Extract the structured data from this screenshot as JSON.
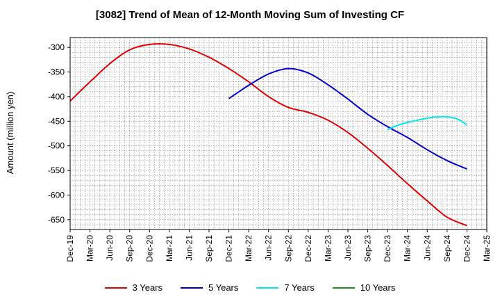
{
  "chart_data": {
    "type": "line",
    "title": "[3082]  Trend of Mean of 12-Month Moving Sum of Investing CF",
    "xlabel": "",
    "ylabel": "Amount (million yen)",
    "ylim": [
      -670,
      -280
    ],
    "yticks": [
      -300,
      -350,
      -400,
      -450,
      -500,
      -550,
      -600,
      -650
    ],
    "categories": [
      "Dec-19",
      "Mar-20",
      "Jun-20",
      "Sep-20",
      "Dec-20",
      "Mar-21",
      "Jun-21",
      "Sep-21",
      "Dec-21",
      "Mar-22",
      "Jun-22",
      "Sep-22",
      "Dec-22",
      "Mar-23",
      "Jun-23",
      "Sep-23",
      "Dec-23",
      "Mar-24",
      "Jun-24",
      "Sep-24",
      "Dec-24",
      "Mar-25"
    ],
    "grid": true,
    "legend_position": "bottom",
    "series": [
      {
        "name": "3 Years",
        "color": "#dd0000",
        "points": [
          [
            0,
            -409
          ],
          [
            1,
            -370
          ],
          [
            2,
            -333
          ],
          [
            3,
            -305
          ],
          [
            4,
            -294
          ],
          [
            5,
            -294
          ],
          [
            6,
            -303
          ],
          [
            7,
            -320
          ],
          [
            8,
            -343
          ],
          [
            9,
            -370
          ],
          [
            10,
            -400
          ],
          [
            11,
            -422
          ],
          [
            12,
            -432
          ],
          [
            13,
            -448
          ],
          [
            14,
            -473
          ],
          [
            15,
            -505
          ],
          [
            16,
            -540
          ],
          [
            17,
            -577
          ],
          [
            18,
            -612
          ],
          [
            19,
            -645
          ],
          [
            20,
            -662
          ]
        ]
      },
      {
        "name": "5 Years",
        "color": "#0000cc",
        "points": [
          [
            8,
            -404
          ],
          [
            9,
            -377
          ],
          [
            10,
            -354
          ],
          [
            11,
            -343
          ],
          [
            12,
            -352
          ],
          [
            13,
            -376
          ],
          [
            14,
            -405
          ],
          [
            15,
            -436
          ],
          [
            16,
            -461
          ],
          [
            17,
            -483
          ],
          [
            18,
            -508
          ],
          [
            19,
            -530
          ],
          [
            20,
            -547
          ]
        ]
      },
      {
        "name": "7 Years",
        "color": "#00e5ee",
        "points": [
          [
            16,
            -467
          ],
          [
            16.6,
            -457
          ],
          [
            17.5,
            -448
          ],
          [
            18.3,
            -442
          ],
          [
            19,
            -441
          ],
          [
            19.6,
            -447
          ],
          [
            20,
            -458
          ]
        ]
      },
      {
        "name": "10 Years",
        "color": "#228b22",
        "points": []
      }
    ]
  }
}
